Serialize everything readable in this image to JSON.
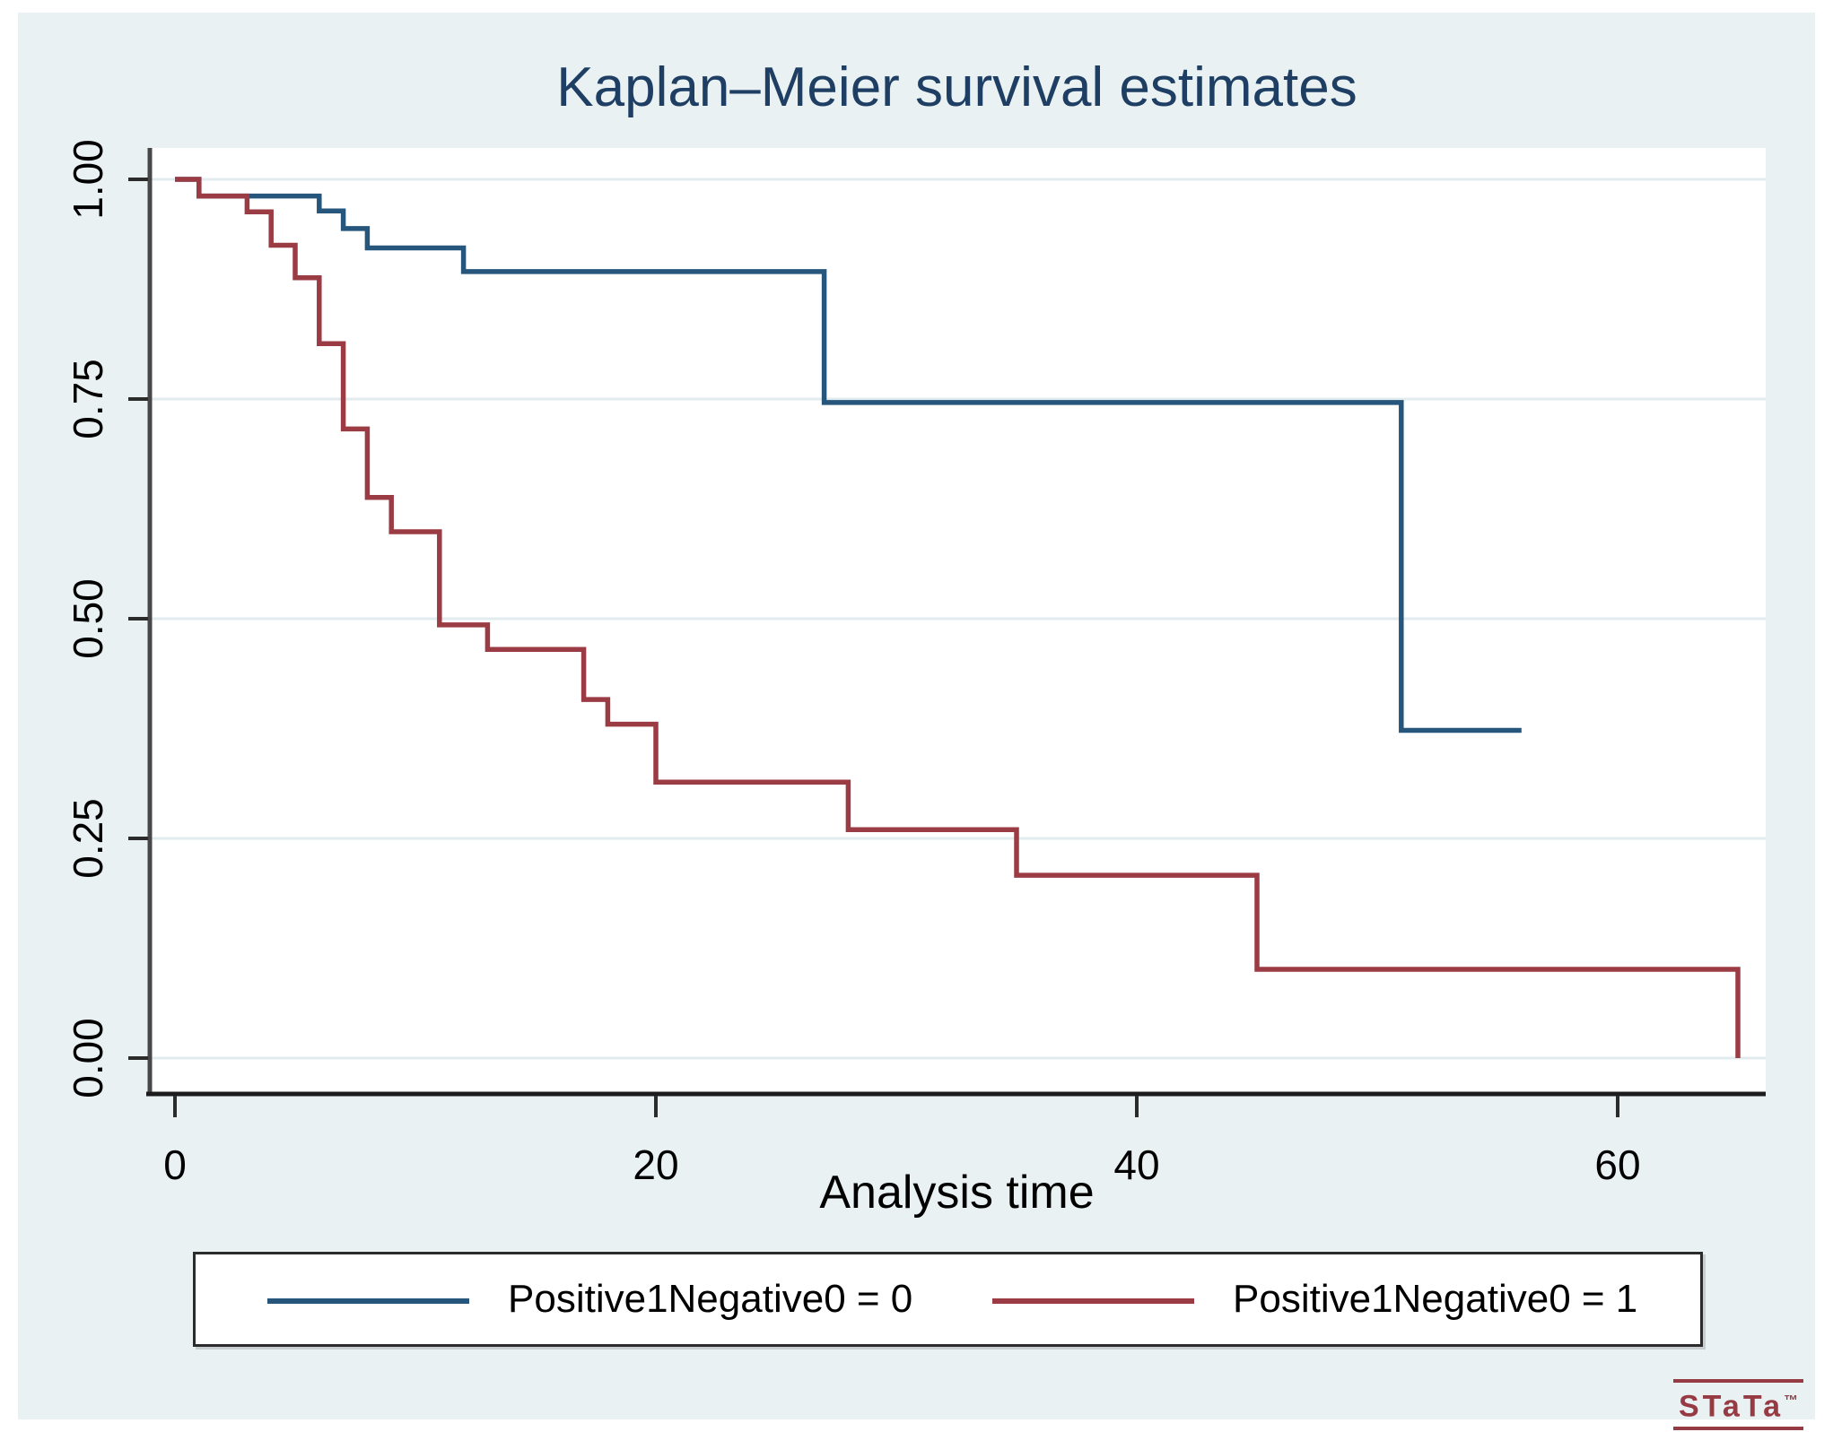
{
  "title": "Kaplan–Meier survival estimates",
  "x_axis_label": "Analysis time",
  "y_tick_labels": [
    "1.00",
    "0.75",
    "0.50",
    "0.25",
    "0.00"
  ],
  "x_tick_labels": [
    "0",
    "20",
    "40",
    "60"
  ],
  "legend": {
    "entries": [
      {
        "label": "Positive1Negative0 = 0",
        "color": "#26567C"
      },
      {
        "label": "Positive1Negative0 = 1",
        "color": "#9B3B44"
      }
    ]
  },
  "logo": {
    "text": "STaTa",
    "tm": "™"
  },
  "colors": {
    "background": "#EAF1F3",
    "plot_background": "#FFFFFF",
    "gridline": "#E2ECEF",
    "axis": "#2B2B2B",
    "title": "#1E3F63",
    "group0": "#26567C",
    "group1": "#9B3B44",
    "logo": "#963A44"
  },
  "chart_data": {
    "type": "line",
    "subtype": "kaplan-meier-step",
    "title": "Kaplan–Meier survival estimates",
    "xlabel": "Analysis time",
    "ylabel": "",
    "xlim": [
      0,
      66
    ],
    "ylim": [
      0,
      1
    ],
    "x_tick_values": [
      0,
      20,
      40,
      60
    ],
    "y_tick_values": [
      1.0,
      0.75,
      0.5,
      0.25,
      0.0
    ],
    "grid": true,
    "legend_position": "bottom",
    "series": [
      {
        "name": "Positive1Negative0 = 0",
        "color": "#26567C",
        "step": true,
        "end_t": 56,
        "points": [
          [
            0,
            1.0
          ],
          [
            1,
            0.981
          ],
          [
            6,
            0.964
          ],
          [
            7,
            0.944
          ],
          [
            8,
            0.922
          ],
          [
            12,
            0.895
          ],
          [
            27,
            0.746
          ],
          [
            51,
            0.373
          ]
        ]
      },
      {
        "name": "Positive1Negative0 = 1",
        "color": "#9B3B44",
        "step": true,
        "end_t": 65,
        "points": [
          [
            0,
            1.0
          ],
          [
            1,
            0.981
          ],
          [
            3,
            0.963
          ],
          [
            4,
            0.925
          ],
          [
            5,
            0.888
          ],
          [
            6,
            0.813
          ],
          [
            7,
            0.716
          ],
          [
            8,
            0.638
          ],
          [
            9,
            0.599
          ],
          [
            11,
            0.493
          ],
          [
            13,
            0.465
          ],
          [
            17,
            0.408
          ],
          [
            18,
            0.38
          ],
          [
            20,
            0.314
          ],
          [
            28,
            0.26
          ],
          [
            35,
            0.208
          ],
          [
            45,
            0.101
          ],
          [
            65,
            0.0
          ]
        ]
      }
    ]
  }
}
